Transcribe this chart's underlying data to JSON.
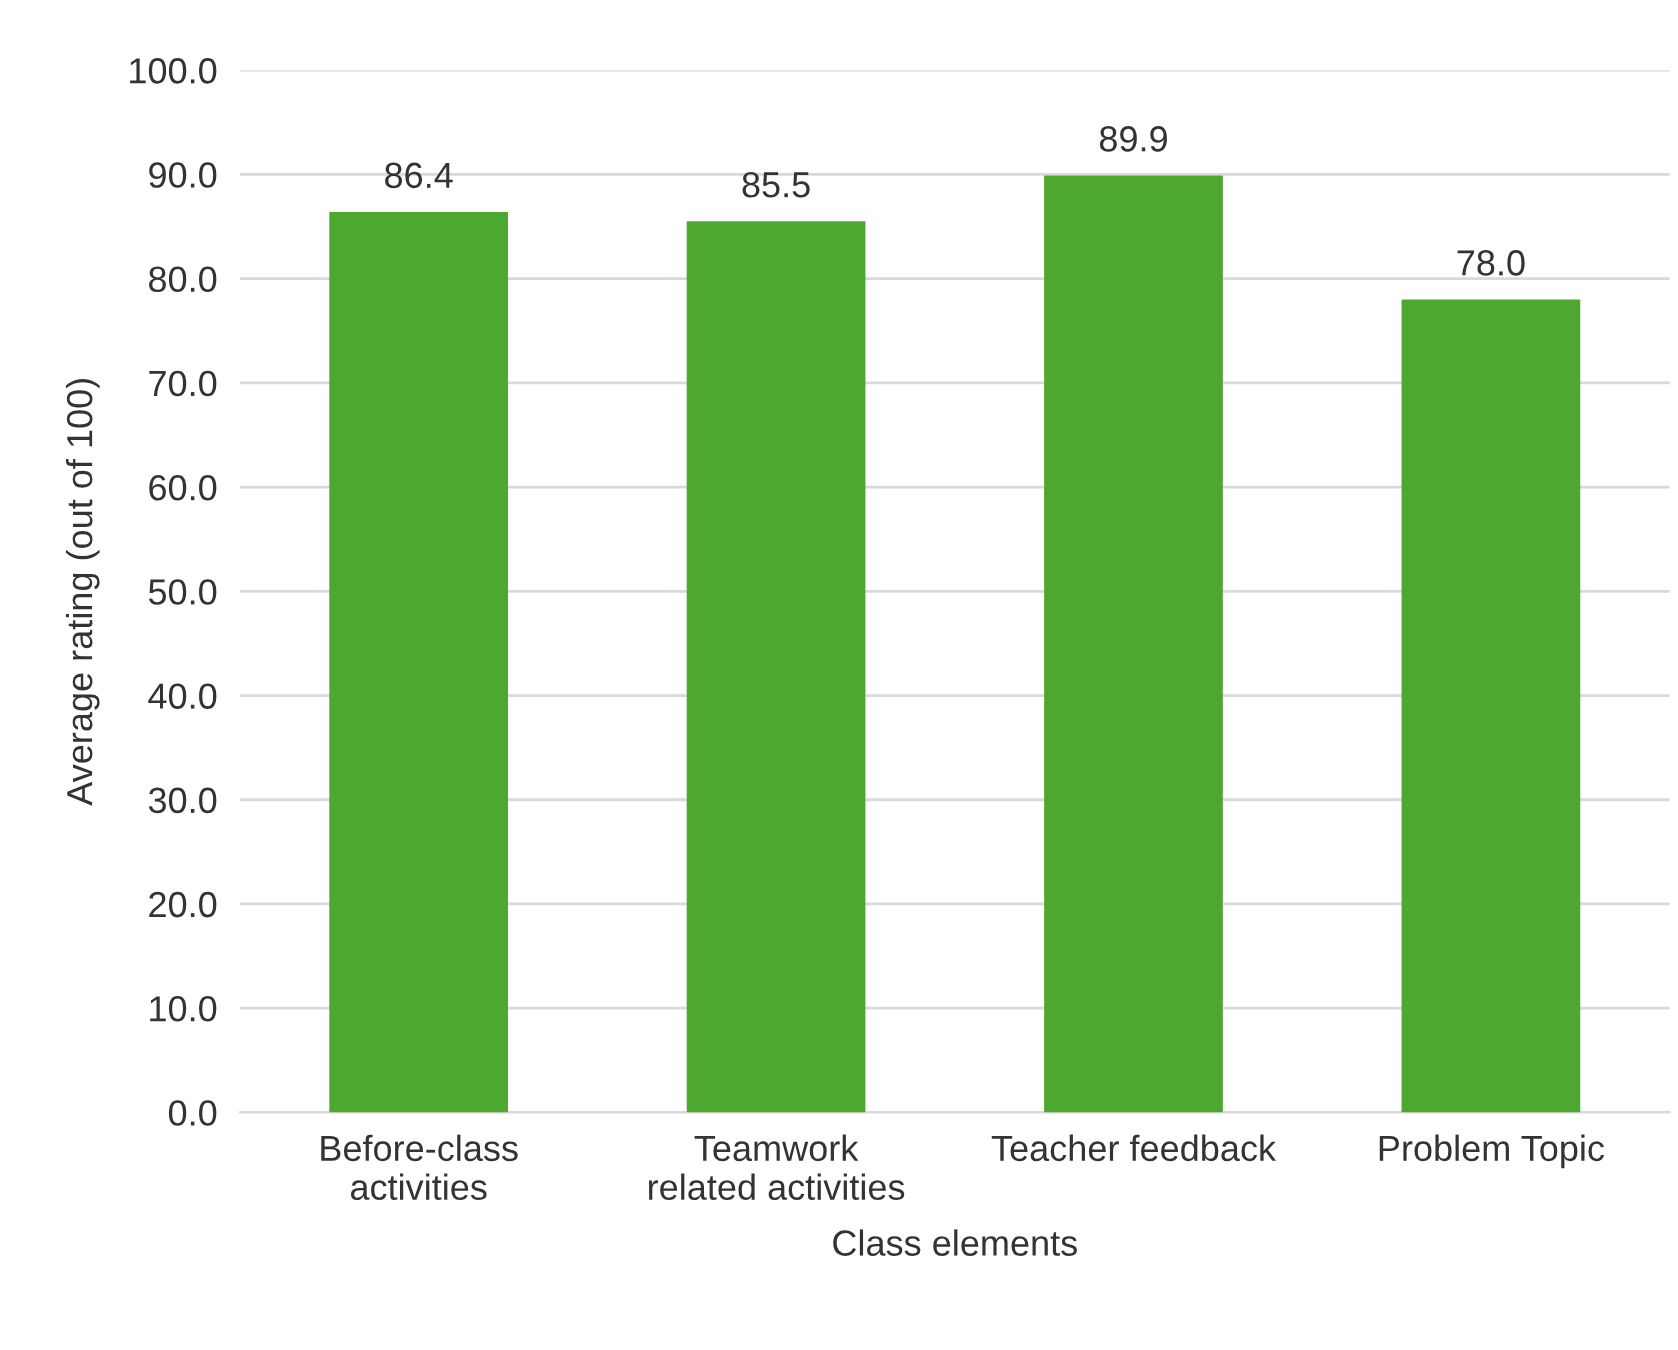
{
  "chart_data": {
    "type": "bar",
    "xlabel": "Class elements",
    "ylabel": "Average rating (out of 100)",
    "categories": [
      "Before-class\nactivities",
      "Teamwork\nrelated activities",
      "Teacher feedback",
      "Problem Topic"
    ],
    "values": [
      86.4,
      85.5,
      89.9,
      78.0
    ],
    "color": "#4ea72e",
    "value_labels": [
      "86.4",
      "85.5",
      "89.9",
      "78.0"
    ],
    "ylim": [
      0,
      100
    ],
    "yticks": [
      {
        "value": 0,
        "label": "0.0"
      },
      {
        "value": 10,
        "label": "10.0"
      },
      {
        "value": 20,
        "label": "20.0"
      },
      {
        "value": 30,
        "label": "30.0"
      },
      {
        "value": 40,
        "label": "40.0"
      },
      {
        "value": 50,
        "label": "50.0"
      },
      {
        "value": 60,
        "label": "60.0"
      },
      {
        "value": 70,
        "label": "70.0"
      },
      {
        "value": 80,
        "label": "80.0"
      },
      {
        "value": 90,
        "label": "90.0"
      },
      {
        "value": 100,
        "label": "100.0"
      }
    ],
    "grid": "y",
    "legend": false
  }
}
